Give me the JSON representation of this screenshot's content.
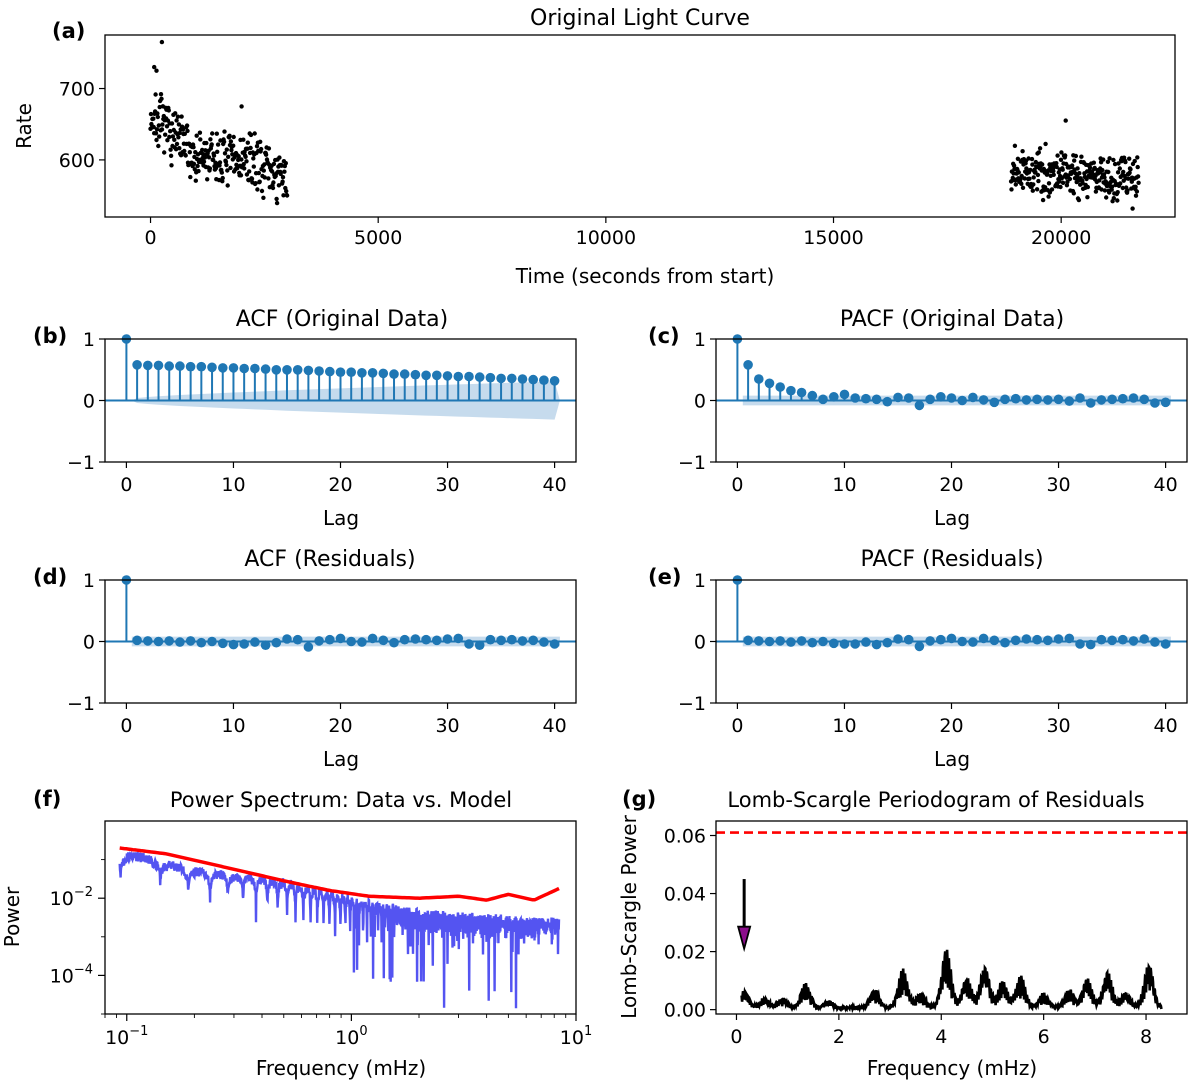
{
  "chart_data": [
    {
      "panel": "(a)",
      "type": "scatter",
      "title": "Original Light Curve",
      "xlabel": "Time (seconds from start)",
      "ylabel": "Rate",
      "xlim": [
        -1000,
        22500
      ],
      "ylim": [
        520,
        775
      ],
      "xticks": [
        0,
        5000,
        10000,
        15000,
        20000
      ],
      "xtick_labels": [
        "0",
        "5000",
        "10000",
        "15000",
        "20000"
      ],
      "yticks": [
        600,
        700
      ],
      "ytick_labels": [
        "600",
        "700"
      ],
      "marker_color": "#000000",
      "segments": [
        {
          "x_start": 0,
          "x_end": 3000,
          "n_points": 300,
          "trend": [
            [
              0,
              660
            ],
            [
              400,
              640
            ],
            [
              1000,
              603
            ],
            [
              2000,
              600
            ],
            [
              2500,
              593
            ],
            [
              3000,
              565
            ]
          ],
          "scatter": 22
        },
        {
          "x_start": 18900,
          "x_end": 21700,
          "n_points": 300,
          "trend": [
            [
              18900,
              580
            ],
            [
              20000,
              585
            ],
            [
              21000,
              575
            ],
            [
              21700,
              578
            ]
          ],
          "scatter": 20
        }
      ],
      "outliers": [
        [
          80,
          730
        ],
        [
          130,
          725
        ],
        [
          250,
          765
        ],
        [
          2000,
          675
        ],
        [
          20100,
          655
        ]
      ]
    },
    {
      "panel": "(b)",
      "type": "stem",
      "title": "ACF (Original Data)",
      "xlabel": "Lag",
      "ylabel": "",
      "xlim": [
        -2,
        42
      ],
      "ylim": [
        -1,
        1
      ],
      "xticks": [
        0,
        10,
        20,
        30,
        40
      ],
      "xtick_labels": [
        "0",
        "10",
        "20",
        "30",
        "40"
      ],
      "yticks": [
        -1,
        0,
        1
      ],
      "ytick_labels": [
        "−1",
        "0",
        "1"
      ],
      "color": "#1f77b4",
      "band_color": "#bcd5ea",
      "band": {
        "lower_at_lag1": -0.04,
        "lower_at_lag40": -0.31
      },
      "lags": [
        0,
        1,
        2,
        3,
        4,
        5,
        6,
        7,
        8,
        9,
        10,
        11,
        12,
        13,
        14,
        15,
        16,
        17,
        18,
        19,
        20,
        21,
        22,
        23,
        24,
        25,
        26,
        27,
        28,
        29,
        30,
        31,
        32,
        33,
        34,
        35,
        36,
        37,
        38,
        39,
        40
      ],
      "values": [
        1.0,
        0.58,
        0.57,
        0.57,
        0.56,
        0.56,
        0.55,
        0.55,
        0.54,
        0.53,
        0.53,
        0.52,
        0.52,
        0.51,
        0.5,
        0.5,
        0.5,
        0.49,
        0.48,
        0.47,
        0.46,
        0.46,
        0.45,
        0.45,
        0.44,
        0.43,
        0.43,
        0.42,
        0.41,
        0.41,
        0.4,
        0.39,
        0.39,
        0.38,
        0.37,
        0.36,
        0.36,
        0.35,
        0.34,
        0.33,
        0.32
      ]
    },
    {
      "panel": "(c)",
      "type": "stem",
      "title": "PACF (Original Data)",
      "xlabel": "Lag",
      "ylabel": "",
      "xlim": [
        -2,
        42
      ],
      "ylim": [
        -1,
        1
      ],
      "xticks": [
        0,
        10,
        20,
        30,
        40
      ],
      "xtick_labels": [
        "0",
        "10",
        "20",
        "30",
        "40"
      ],
      "yticks": [
        -1,
        0,
        1
      ],
      "ytick_labels": [
        "−1",
        "0",
        "1"
      ],
      "color": "#1f77b4",
      "band_color": "#bcd5ea",
      "band": {
        "half_width": 0.08
      },
      "lags": [
        0,
        1,
        2,
        3,
        4,
        5,
        6,
        7,
        8,
        9,
        10,
        11,
        12,
        13,
        14,
        15,
        16,
        17,
        18,
        19,
        20,
        21,
        22,
        23,
        24,
        25,
        26,
        27,
        28,
        29,
        30,
        31,
        32,
        33,
        34,
        35,
        36,
        37,
        38,
        39,
        40
      ],
      "values": [
        1.0,
        0.58,
        0.35,
        0.28,
        0.22,
        0.16,
        0.13,
        0.08,
        0.02,
        0.06,
        0.1,
        0.04,
        0.03,
        0.02,
        -0.02,
        0.05,
        0.04,
        -0.08,
        0.02,
        0.06,
        0.04,
        0.0,
        0.05,
        0.01,
        -0.03,
        0.02,
        0.03,
        0.01,
        0.02,
        0.01,
        0.02,
        -0.01,
        0.04,
        -0.04,
        0.01,
        0.02,
        0.03,
        0.04,
        0.02,
        -0.04,
        -0.03
      ]
    },
    {
      "panel": "(d)",
      "type": "stem",
      "title": "ACF (Residuals)",
      "xlabel": "Lag",
      "ylabel": "",
      "xlim": [
        -2,
        42
      ],
      "ylim": [
        -1,
        1
      ],
      "xticks": [
        0,
        10,
        20,
        30,
        40
      ],
      "xtick_labels": [
        "0",
        "10",
        "20",
        "30",
        "40"
      ],
      "yticks": [
        -1,
        0,
        1
      ],
      "ytick_labels": [
        "−1",
        "0",
        "1"
      ],
      "color": "#1f77b4",
      "band_color": "#bcd5ea",
      "band": {
        "half_width": 0.08
      },
      "lags": [
        0,
        1,
        2,
        3,
        4,
        5,
        6,
        7,
        8,
        9,
        10,
        11,
        12,
        13,
        14,
        15,
        16,
        17,
        18,
        19,
        20,
        21,
        22,
        23,
        24,
        25,
        26,
        27,
        28,
        29,
        30,
        31,
        32,
        33,
        34,
        35,
        36,
        37,
        38,
        39,
        40
      ],
      "values": [
        1.0,
        0.02,
        0.01,
        0.0,
        0.01,
        -0.01,
        0.01,
        -0.02,
        0.0,
        -0.03,
        -0.05,
        -0.04,
        -0.01,
        -0.06,
        -0.02,
        0.04,
        0.03,
        -0.09,
        0.01,
        0.03,
        0.05,
        0.0,
        -0.01,
        0.05,
        0.02,
        -0.02,
        0.03,
        0.04,
        0.03,
        0.02,
        0.04,
        0.05,
        -0.04,
        -0.06,
        0.03,
        0.02,
        0.03,
        0.01,
        0.02,
        -0.01,
        -0.04
      ]
    },
    {
      "panel": "(e)",
      "type": "stem",
      "title": "PACF (Residuals)",
      "xlabel": "Lag",
      "ylabel": "",
      "xlim": [
        -2,
        42
      ],
      "ylim": [
        -1,
        1
      ],
      "xticks": [
        0,
        10,
        20,
        30,
        40
      ],
      "xtick_labels": [
        "0",
        "10",
        "20",
        "30",
        "40"
      ],
      "yticks": [
        -1,
        0,
        1
      ],
      "ytick_labels": [
        "−1",
        "0",
        "1"
      ],
      "color": "#1f77b4",
      "band_color": "#bcd5ea",
      "band": {
        "half_width": 0.08
      },
      "lags": [
        0,
        1,
        2,
        3,
        4,
        5,
        6,
        7,
        8,
        9,
        10,
        11,
        12,
        13,
        14,
        15,
        16,
        17,
        18,
        19,
        20,
        21,
        22,
        23,
        24,
        25,
        26,
        27,
        28,
        29,
        30,
        31,
        32,
        33,
        34,
        35,
        36,
        37,
        38,
        39,
        40
      ],
      "values": [
        1.0,
        0.02,
        0.01,
        0.0,
        0.01,
        -0.01,
        0.01,
        -0.02,
        0.0,
        -0.03,
        -0.04,
        -0.04,
        -0.01,
        -0.05,
        -0.02,
        0.04,
        0.03,
        -0.08,
        0.01,
        0.03,
        0.05,
        0.0,
        -0.01,
        0.05,
        0.02,
        -0.02,
        0.02,
        0.04,
        0.03,
        0.02,
        0.04,
        0.05,
        -0.04,
        -0.05,
        0.03,
        0.02,
        0.03,
        0.01,
        0.04,
        -0.01,
        -0.04
      ]
    },
    {
      "panel": "(f)",
      "type": "line",
      "title": "Power Spectrum: Data vs. Model",
      "xlabel": "Frequency (mHz)",
      "ylabel": "Power",
      "x_scale": "log",
      "y_scale": "log",
      "xlim": [
        0.08,
        10
      ],
      "ylim": [
        1e-05,
        1
      ],
      "xtick_exponents": [
        -1,
        0,
        1
      ],
      "ytick_exponents": [
        -2,
        -4
      ],
      "series": [
        {
          "color": "#4b4bf0",
          "f_min": 0.093,
          "f_max": 8.4,
          "trend_exponents": [
            [
              0.1,
              -1.05
            ],
            [
              0.2,
              -1.5
            ],
            [
              0.5,
              -1.8
            ],
            [
              1.0,
              -2.25
            ],
            [
              2.0,
              -2.6
            ],
            [
              5.0,
              -2.75
            ],
            [
              8.4,
              -2.8
            ]
          ],
          "dip_depth": 3.0
        },
        {
          "color": "#ff0000",
          "f_min": 0.093,
          "f_max": 8.4,
          "exponents": [
            [
              0.093,
              -0.7
            ],
            [
              0.15,
              -0.85
            ],
            [
              0.3,
              -1.25
            ],
            [
              0.5,
              -1.55
            ],
            [
              0.8,
              -1.8
            ],
            [
              1.2,
              -1.95
            ],
            [
              2.0,
              -2.0
            ],
            [
              3.0,
              -1.95
            ],
            [
              4.0,
              -2.05
            ],
            [
              5.0,
              -1.9
            ],
            [
              6.5,
              -2.05
            ],
            [
              8.4,
              -1.75
            ]
          ]
        }
      ]
    },
    {
      "panel": "(g)",
      "type": "line",
      "title": "Lomb-Scargle Periodogram of Residuals",
      "xlabel": "Frequency (mHz)",
      "ylabel": "Lomb-Scargle Power",
      "xlim": [
        -0.4,
        8.8
      ],
      "ylim": [
        -0.0015,
        0.065
      ],
      "xticks": [
        0,
        2,
        4,
        6,
        8
      ],
      "xtick_labels": [
        "0",
        "2",
        "4",
        "6",
        "8"
      ],
      "yticks": [
        0.0,
        0.02,
        0.04,
        0.06
      ],
      "ytick_labels": [
        "0.00",
        "0.02",
        "0.04",
        "0.06"
      ],
      "threshold": 0.061,
      "threshold_color": "#ff0000",
      "line_color": "#000000",
      "arrow": {
        "x": 0.15,
        "y_tail": 0.045,
        "y_head": 0.021,
        "face_color": "#8b0d8b"
      },
      "f_min": 0.1,
      "f_max": 8.3,
      "peaks": [
        [
          0.15,
          0.006
        ],
        [
          0.55,
          0.003
        ],
        [
          0.9,
          0.003
        ],
        [
          1.35,
          0.008
        ],
        [
          1.8,
          0.002
        ],
        [
          2.7,
          0.006
        ],
        [
          3.25,
          0.013
        ],
        [
          3.6,
          0.005
        ],
        [
          4.1,
          0.02
        ],
        [
          4.5,
          0.01
        ],
        [
          4.85,
          0.014
        ],
        [
          5.2,
          0.009
        ],
        [
          5.55,
          0.011
        ],
        [
          6.0,
          0.005
        ],
        [
          6.5,
          0.006
        ],
        [
          6.85,
          0.01
        ],
        [
          7.25,
          0.012
        ],
        [
          7.6,
          0.005
        ],
        [
          8.05,
          0.015
        ]
      ]
    }
  ]
}
